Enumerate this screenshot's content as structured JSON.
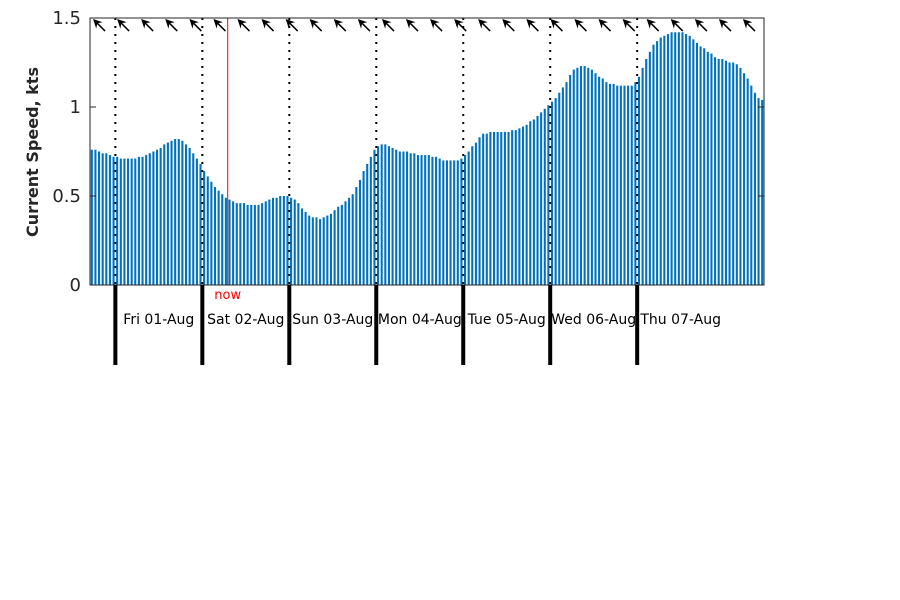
{
  "chart_data": {
    "type": "bar",
    "ylabel": "Current Speed, kts",
    "ylim": [
      0,
      1.5
    ],
    "yticks": [
      0,
      0.5,
      1,
      1.5
    ],
    "ytick_labels": [
      "0",
      "0.5",
      "1",
      "1.5"
    ],
    "bar_color": "#0072bd",
    "now_color": "#ff0000",
    "now_label": "now",
    "days": [
      "Fri 01-Aug",
      "Sat 02-Aug",
      "Sun 03-Aug",
      "Mon 04-Aug",
      "Tue 05-Aug",
      "Wed 06-Aug",
      "Thu 07-Aug"
    ],
    "values": [
      0.76,
      0.76,
      0.75,
      0.74,
      0.74,
      0.73,
      0.72,
      0.72,
      0.71,
      0.71,
      0.71,
      0.71,
      0.71,
      0.72,
      0.72,
      0.73,
      0.74,
      0.75,
      0.76,
      0.77,
      0.79,
      0.8,
      0.81,
      0.82,
      0.82,
      0.81,
      0.79,
      0.77,
      0.74,
      0.71,
      0.68,
      0.64,
      0.61,
      0.58,
      0.55,
      0.53,
      0.51,
      0.49,
      0.48,
      0.47,
      0.46,
      0.46,
      0.46,
      0.45,
      0.45,
      0.45,
      0.45,
      0.46,
      0.47,
      0.48,
      0.49,
      0.49,
      0.5,
      0.5,
      0.5,
      0.49,
      0.48,
      0.46,
      0.43,
      0.41,
      0.39,
      0.38,
      0.38,
      0.37,
      0.38,
      0.39,
      0.4,
      0.42,
      0.44,
      0.45,
      0.47,
      0.49,
      0.51,
      0.55,
      0.59,
      0.64,
      0.68,
      0.72,
      0.76,
      0.78,
      0.79,
      0.79,
      0.78,
      0.77,
      0.76,
      0.75,
      0.75,
      0.75,
      0.74,
      0.74,
      0.73,
      0.73,
      0.73,
      0.73,
      0.72,
      0.72,
      0.71,
      0.7,
      0.7,
      0.7,
      0.7,
      0.7,
      0.71,
      0.73,
      0.75,
      0.78,
      0.8,
      0.83,
      0.85,
      0.85,
      0.86,
      0.86,
      0.86,
      0.86,
      0.86,
      0.86,
      0.87,
      0.87,
      0.88,
      0.89,
      0.9,
      0.92,
      0.93,
      0.95,
      0.97,
      0.99,
      1.01,
      1.03,
      1.05,
      1.08,
      1.11,
      1.14,
      1.18,
      1.21,
      1.22,
      1.23,
      1.23,
      1.22,
      1.21,
      1.19,
      1.17,
      1.16,
      1.14,
      1.13,
      1.13,
      1.12,
      1.12,
      1.12,
      1.12,
      1.12,
      1.14,
      1.17,
      1.22,
      1.27,
      1.31,
      1.35,
      1.37,
      1.39,
      1.4,
      1.41,
      1.42,
      1.42,
      1.42,
      1.42,
      1.41,
      1.4,
      1.38,
      1.36,
      1.34,
      1.33,
      1.31,
      1.3,
      1.28,
      1.27,
      1.27,
      1.26,
      1.25,
      1.25,
      1.24,
      1.22,
      1.19,
      1.16,
      1.12,
      1.08,
      1.05,
      1.04
    ],
    "now_index": 38,
    "direction_arrow_count": 28
  }
}
